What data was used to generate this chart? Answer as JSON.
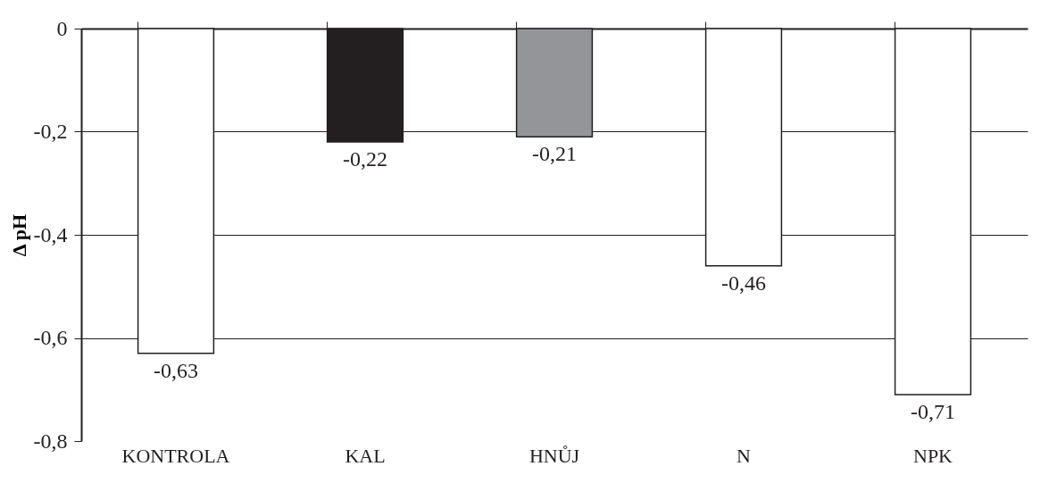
{
  "chart_data": {
    "type": "bar",
    "ylabel": "Δ pH",
    "categories": [
      "KONTROLA",
      "KAL",
      "HNŮJ",
      "N",
      "NPK"
    ],
    "values": [
      -0.63,
      -0.22,
      -0.21,
      -0.46,
      -0.71
    ],
    "colors": [
      "#ffffff",
      "#231f20",
      "#939598",
      "#ffffff",
      "#ffffff"
    ],
    "value_labels": [
      "-0,63",
      "-0,22",
      "-0,21",
      "-0,46",
      "-0,71"
    ],
    "ylim": [
      -0.8,
      0
    ],
    "yticks": [
      {
        "value": 0,
        "label": "0"
      },
      {
        "value": -0.2,
        "label": "-0,2"
      },
      {
        "value": -0.4,
        "label": "-0,4"
      },
      {
        "value": -0.6,
        "label": "-0,6"
      },
      {
        "value": -0.8,
        "label": "-0,8"
      }
    ],
    "grid": "y"
  }
}
